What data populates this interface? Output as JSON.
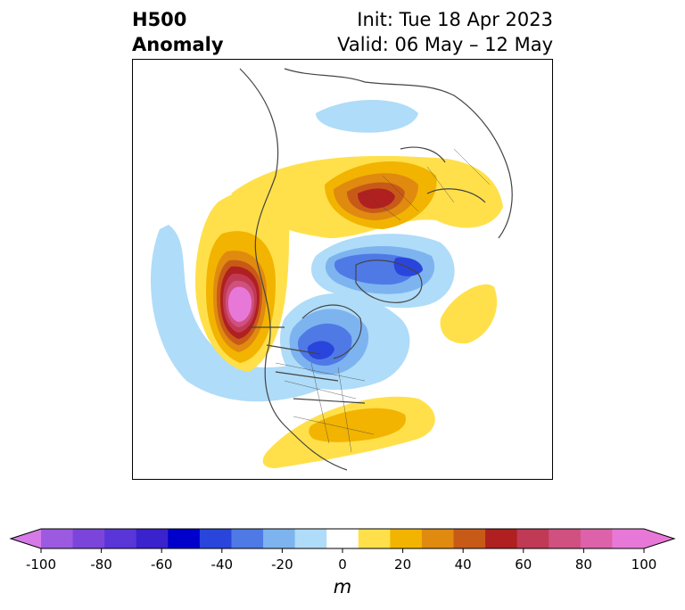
{
  "title": {
    "left_line1": "H500",
    "left_line2": "Anomaly",
    "right_line1": "Init: Tue 18 Apr 2023",
    "right_line2": "Valid: 06 May – 12 May"
  },
  "colorbar": {
    "unit": "m",
    "ticks": [
      "-100",
      "-80",
      "-60",
      "-40",
      "-20",
      "0",
      "20",
      "40",
      "60",
      "80",
      "100"
    ],
    "levels": [
      -100,
      -90,
      -80,
      -70,
      -60,
      -50,
      -40,
      -30,
      -20,
      -10,
      10,
      20,
      30,
      40,
      50,
      60,
      70,
      80,
      90,
      100
    ],
    "colors": [
      "#9b5ae0",
      "#7b45dc",
      "#5a35d8",
      "#3a22cc",
      "#0000cc",
      "#2a45dc",
      "#4f7ae6",
      "#7db4f0",
      "#afdcf8",
      "#ffffff",
      "#ffe04a",
      "#f2b400",
      "#e08a10",
      "#c85a18",
      "#b02020",
      "#c03a55",
      "#d05080",
      "#dd62aa",
      "#e878d8"
    ],
    "extend_low_color": "#d67ae8",
    "extend_high_color": "#e878d8"
  }
}
